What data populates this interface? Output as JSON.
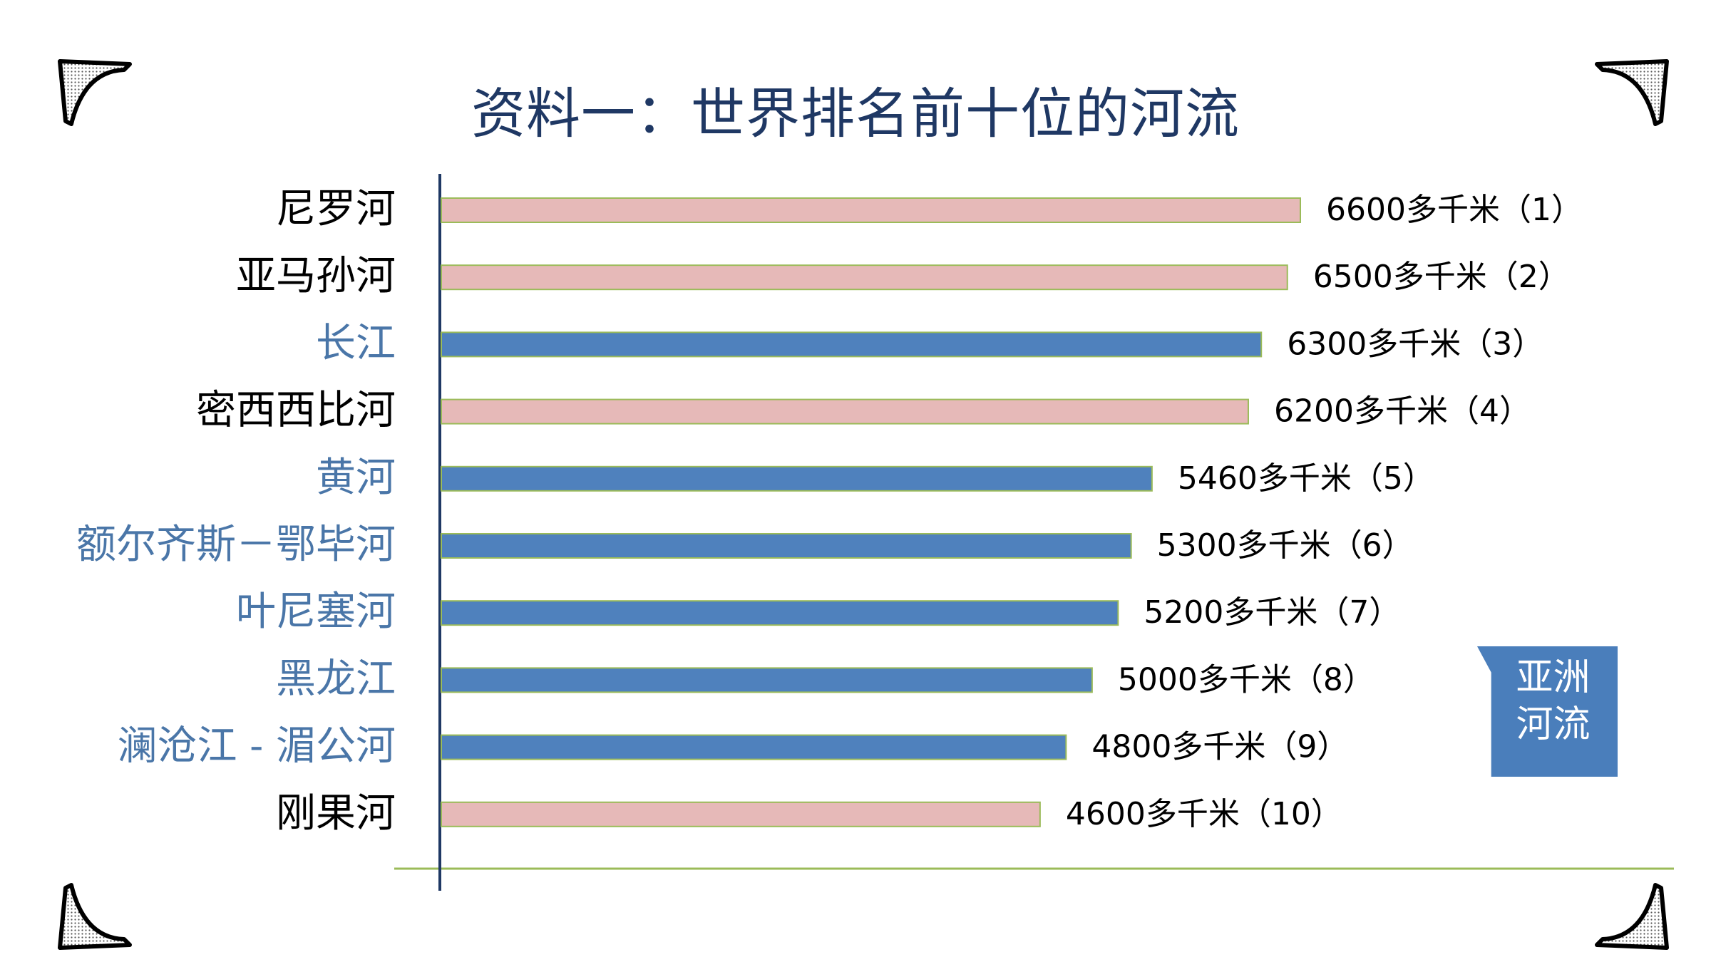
{
  "title": "资料一：世界排名前十位的河流",
  "badge": "亚洲\n河流",
  "colors": {
    "asia_bar": "#4f81bd",
    "other_bar": "#e6b9b8",
    "bar_border": "#9bbb59",
    "asia_label": "#4a76a8",
    "other_label": "#000000",
    "axis": "#1f3864",
    "baseline": "#9bbb59",
    "badge": "#4a7ebb"
  },
  "chart_data": {
    "type": "bar",
    "orientation": "horizontal",
    "categories": [
      "尼罗河",
      "亚马孙河",
      "长江",
      "密西西比河",
      "黄河",
      "额尔齐斯－鄂毕河",
      "叶尼塞河",
      "黑龙江",
      "澜沧江 - 湄公河",
      "刚果河"
    ],
    "values": [
      6600,
      6500,
      6300,
      6200,
      5460,
      5300,
      5200,
      5000,
      4800,
      4600
    ],
    "data_labels": [
      "6600多千米（1）",
      "6500多千米（2）",
      "6300多千米（3）",
      "6200多千米（4）",
      "5460多千米（5）",
      "5300多千米（6）",
      "5200多千米（7）",
      "5000多千米（8）",
      "4800多千米（9）",
      "4600多千米（10）"
    ],
    "asia": [
      false,
      false,
      true,
      false,
      true,
      true,
      true,
      true,
      true,
      false
    ],
    "xlim": [
      0,
      6600
    ],
    "grid": false,
    "legend": "none",
    "xlabel": "",
    "ylabel": ""
  }
}
